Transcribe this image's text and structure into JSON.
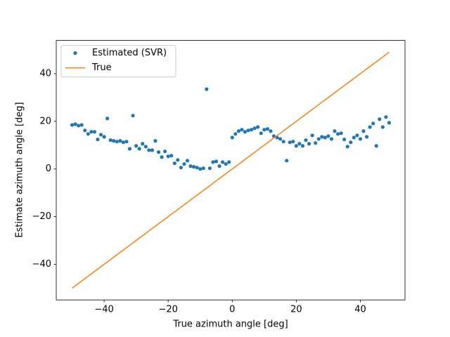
{
  "chart_data": {
    "type": "line",
    "xlabel": "True azimuth angle [deg]",
    "ylabel": "Estimate azimuth angle [deg]",
    "x": [
      -50,
      -49,
      -48,
      -47,
      -46,
      -45,
      -44,
      -43,
      -42,
      -41,
      -40,
      -39,
      -38,
      -37,
      -36,
      -35,
      -34,
      -33,
      -32,
      -31,
      -30,
      -29,
      -28,
      -27,
      -26,
      -25,
      -24,
      -23,
      -22,
      -21,
      -20,
      -19,
      -18,
      -17,
      -16,
      -15,
      -14,
      -13,
      -12,
      -11,
      -10,
      -9,
      -8,
      -7,
      -6,
      -5,
      -4,
      -3,
      -2,
      -1,
      0,
      1,
      2,
      3,
      4,
      5,
      6,
      7,
      8,
      9,
      10,
      11,
      12,
      13,
      14,
      15,
      16,
      17,
      18,
      19,
      20,
      21,
      22,
      23,
      24,
      25,
      26,
      27,
      28,
      29,
      30,
      31,
      32,
      33,
      34,
      35,
      36,
      37,
      38,
      39,
      40,
      41,
      42,
      43,
      44,
      45,
      46,
      47,
      48,
      49
    ],
    "series": [
      {
        "name": "Estimated (SVR)",
        "color": "#1f77b4",
        "marker": "o",
        "linestyle": "none",
        "values": [
          18.5,
          18.8,
          18.2,
          18.5,
          16.2,
          14.7,
          15.6,
          15.6,
          12.4,
          14.4,
          13.5,
          21.2,
          12.1,
          11.8,
          11.5,
          11.8,
          11.2,
          11.5,
          8.5,
          22.4,
          9.7,
          8.5,
          10.6,
          9.4,
          7.9,
          7.9,
          11.8,
          7.1,
          5.0,
          7.4,
          5.3,
          5.6,
          2.4,
          3.8,
          0.6,
          2.1,
          3.5,
          1.2,
          0.9,
          0.6,
          0.0,
          0.3,
          33.5,
          0.3,
          2.9,
          3.2,
          1.2,
          2.9,
          2.1,
          2.9,
          13.2,
          14.7,
          15.9,
          16.5,
          15.6,
          16.2,
          16.5,
          17.1,
          17.6,
          15.0,
          16.5,
          16.8,
          15.9,
          13.8,
          13.2,
          12.6,
          11.5,
          3.5,
          11.2,
          11.5,
          9.7,
          10.6,
          9.7,
          12.1,
          10.6,
          14.1,
          10.9,
          12.6,
          13.5,
          13.2,
          13.8,
          12.6,
          15.9,
          14.7,
          15.0,
          12.4,
          9.4,
          11.2,
          13.2,
          14.1,
          12.6,
          15.9,
          13.5,
          17.6,
          19.1,
          9.7,
          20.9,
          17.6,
          21.8,
          19.4
        ]
      },
      {
        "name": "True",
        "color": "#ff7f0e",
        "marker": "none",
        "linestyle": "solid",
        "values": [
          -50,
          -49,
          -48,
          -47,
          -46,
          -45,
          -44,
          -43,
          -42,
          -41,
          -40,
          -39,
          -38,
          -37,
          -36,
          -35,
          -34,
          -33,
          -32,
          -31,
          -30,
          -29,
          -28,
          -27,
          -26,
          -25,
          -24,
          -23,
          -22,
          -21,
          -20,
          -19,
          -18,
          -17,
          -16,
          -15,
          -14,
          -13,
          -12,
          -11,
          -10,
          -9,
          -8,
          -7,
          -6,
          -5,
          -4,
          -3,
          -2,
          -1,
          0,
          1,
          2,
          3,
          4,
          5,
          6,
          7,
          8,
          9,
          10,
          11,
          12,
          13,
          14,
          15,
          16,
          17,
          18,
          19,
          20,
          21,
          22,
          23,
          24,
          25,
          26,
          27,
          28,
          29,
          30,
          31,
          32,
          33,
          34,
          35,
          36,
          37,
          38,
          39,
          40,
          41,
          42,
          43,
          44,
          45,
          46,
          47,
          48,
          49
        ]
      }
    ],
    "xlim": [
      -54.95,
      53.95
    ],
    "ylim": [
      -54.95,
      53.95
    ],
    "xticks": [
      {
        "value": -40,
        "label": "−40"
      },
      {
        "value": -20,
        "label": "−20"
      },
      0,
      20,
      40
    ],
    "yticks": [
      {
        "value": -40,
        "label": "−40"
      },
      {
        "value": -20,
        "label": "−20"
      },
      0,
      20,
      40
    ],
    "grid": false,
    "legend": "upper left"
  }
}
